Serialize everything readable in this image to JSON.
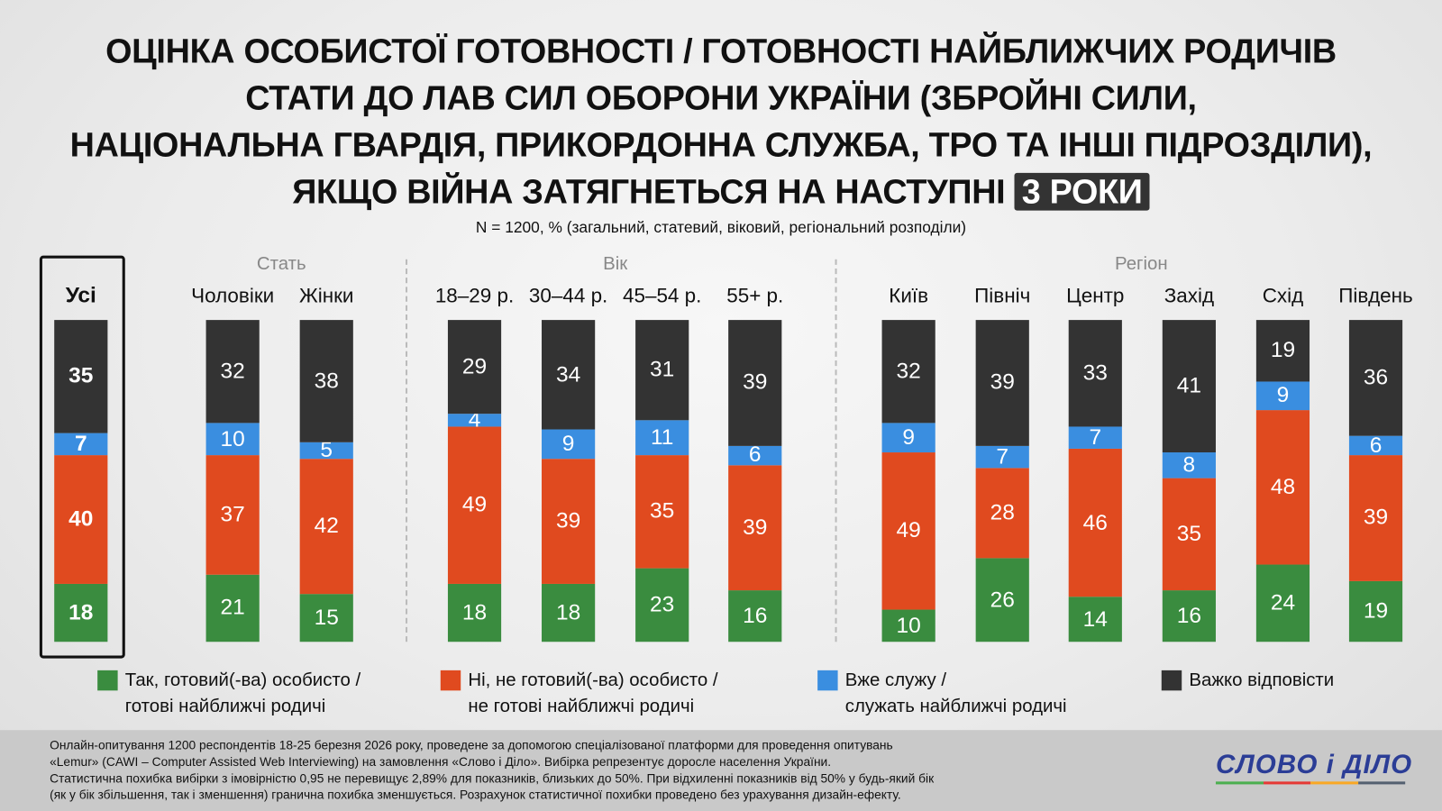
{
  "chart_data": {
    "type": "bar",
    "stacked": true,
    "title_lines": [
      "ОЦІНКА ОСОБИСТОЇ ГОТОВНОСТІ / ГОТОВНОСТІ НАЙБЛИЖЧИХ РОДИЧІВ",
      "СТАТИ ДО ЛАВ СИЛ ОБОРОНИ УКРАЇНИ (ЗБРОЙНІ СИЛИ,",
      "НАЦІОНАЛЬНА ГВАРДІЯ, ПРИКОРДОННА СЛУЖБА, ТРО ТА ІНШІ ПІДРОЗДІЛИ),",
      "ЯКЩО ВІЙНА ЗАТЯГНЕТЬСЯ НА НАСТУПНІ"
    ],
    "title_highlight": "3 РОКИ",
    "subtitle": "N = 1200, % (загальний, статевий, віковий, регіональний розподіли)",
    "groups": [
      "Стать",
      "Вік",
      "Регіон"
    ],
    "categories": [
      "Усі",
      "Чоловіки",
      "Жінки",
      "18–29 р.",
      "30–44 р.",
      "45–54 р.",
      "55+ р.",
      "Київ",
      "Північ",
      "Центр",
      "Захід",
      "Схід",
      "Південь"
    ],
    "series": [
      {
        "name": "Так, готовий(-ва) особисто / готові найближчі родичі",
        "color": "#3a8c3f",
        "values": [
          18,
          21,
          15,
          18,
          18,
          23,
          16,
          10,
          26,
          14,
          16,
          24,
          19
        ]
      },
      {
        "name": "Ні, не готовий(-ва) особисто / не готові найближчі родичі",
        "color": "#e04a1f",
        "values": [
          40,
          37,
          42,
          49,
          39,
          35,
          39,
          49,
          28,
          46,
          35,
          48,
          39
        ]
      },
      {
        "name": "Вже служу / служать найближчі родичі",
        "color": "#3a8ee0",
        "values": [
          7,
          10,
          5,
          4,
          9,
          11,
          6,
          9,
          7,
          7,
          8,
          9,
          6
        ]
      },
      {
        "name": "Важко відповісти",
        "color": "#333333",
        "values": [
          35,
          32,
          38,
          29,
          34,
          31,
          39,
          32,
          39,
          33,
          41,
          19,
          36
        ]
      }
    ],
    "legend_lines": [
      [
        "Так, готовий(-ва) особисто /",
        "готові найближчі родичі"
      ],
      [
        "Ні, не готовий(-ва) особисто /",
        "не готові найближчі родичі"
      ],
      [
        "Вже служу /",
        "служать найближчі родичі"
      ],
      [
        "Важко відповісти"
      ]
    ]
  },
  "footer": {
    "lines": [
      "Онлайн-опитування 1200 респондентів 18-25 березня 2026 року, проведене за допомогою спеціалізованої платформи для проведення опитувань",
      "«Lemur» (CAWI – Computer Assisted Web Interviewing) на замовлення «Слово і Діло». Вибірка репрезентує доросле населення України.",
      "Статистична похибка вибірки з імовірністю 0,95 не перевищує 2,89% для показників, близьких до 50%. При відхиленні показників від 50% у будь-який бік",
      "(як у бік збільшення, так і зменшення) гранична похибка зменшується. Розрахунок статистичної похибки проведено без урахування дизайн-ефекту."
    ]
  },
  "logo": {
    "text": "СЛОВО і ДІЛО",
    "colors": [
      "#4caf50",
      "#e53935",
      "#f9a825",
      "#546070"
    ]
  }
}
